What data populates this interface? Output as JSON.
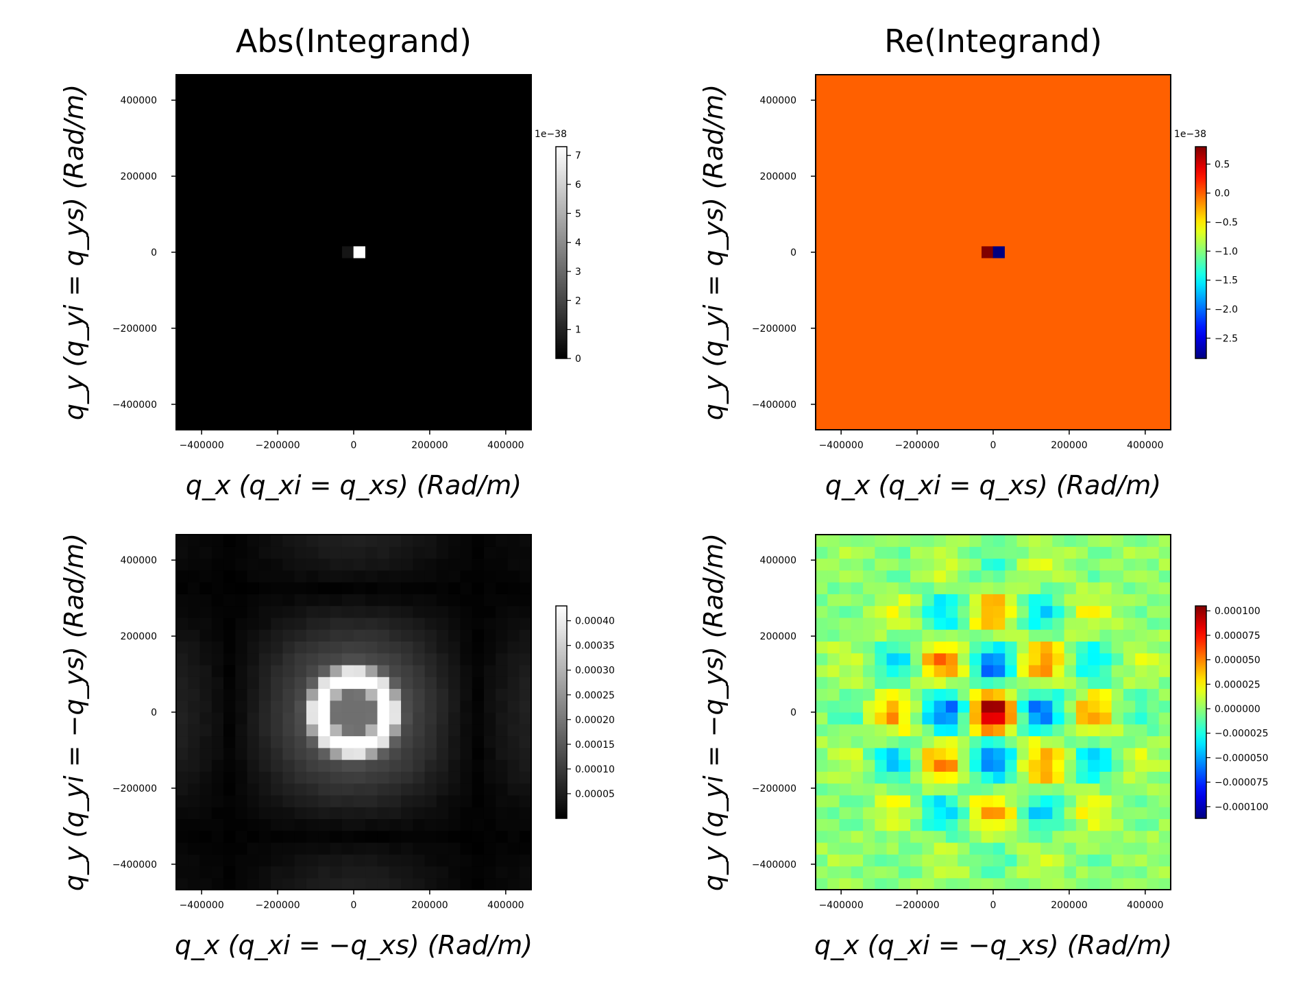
{
  "chart_data": [
    {
      "type": "heatmap",
      "colormap": "gray",
      "title": "Abs(Integrand)",
      "xlabel": "q_x (q_xi = q_xs) (Rad/m)",
      "ylabel": "q_y (q_yi = q_ys) (Rad/m)",
      "xlim": [
        -467000,
        467000
      ],
      "ylim": [
        -467000,
        467000
      ],
      "xticks": [
        -400000,
        -200000,
        0,
        200000,
        400000
      ],
      "xtick_labels": [
        "−400000",
        "−200000",
        "0",
        "200000",
        "400000"
      ],
      "yticks": [
        -400000,
        -200000,
        0,
        200000,
        400000
      ],
      "ytick_labels": [
        "−400000",
        "−200000",
        "0",
        "200000",
        "400000"
      ],
      "grid_size": 30,
      "background_value": 0,
      "cells": [
        {
          "x": -15000,
          "y": 0,
          "v": 0.6
        },
        {
          "x": 15000,
          "y": 0,
          "v": 7.3
        }
      ],
      "colorbar": {
        "min": 0,
        "max": 7.3,
        "ticks": [
          0,
          1,
          2,
          3,
          4,
          5,
          6,
          7
        ],
        "tick_labels": [
          "0",
          "1",
          "2",
          "3",
          "4",
          "5",
          "6",
          "7"
        ],
        "offset_label": "1e−38"
      },
      "grid": false
    },
    {
      "type": "heatmap",
      "colormap": "jet",
      "title": "Re(Integrand)",
      "xlabel": "q_x (q_xi = q_xs) (Rad/m)",
      "ylabel": "q_y (q_yi = q_ys) (Rad/m)",
      "xlim": [
        -467000,
        467000
      ],
      "ylim": [
        -467000,
        467000
      ],
      "xticks": [
        -400000,
        -200000,
        0,
        200000,
        400000
      ],
      "xtick_labels": [
        "−400000",
        "−200000",
        "0",
        "200000",
        "400000"
      ],
      "yticks": [
        -400000,
        -200000,
        0,
        200000,
        400000
      ],
      "ytick_labels": [
        "−400000",
        "−200000",
        "0",
        "200000",
        "400000"
      ],
      "grid_size": 30,
      "background_value": 0,
      "cells": [
        {
          "x": -15000,
          "y": 0,
          "v": 0.8
        },
        {
          "x": 15000,
          "y": 0,
          "v": -2.85
        }
      ],
      "colorbar": {
        "min": -2.85,
        "max": 0.8,
        "ticks": [
          0.5,
          0.0,
          -0.5,
          -1.0,
          -1.5,
          -2.0,
          -2.5
        ],
        "tick_labels": [
          "0.5",
          "0.0",
          "−0.5",
          "−1.0",
          "−1.5",
          "−2.0",
          "−2.5"
        ],
        "offset_label": "1e−38"
      },
      "grid": false
    },
    {
      "type": "heatmap",
      "colormap": "gray",
      "title": "",
      "xlabel": "q_x (q_xi = −q_xs) (Rad/m)",
      "ylabel": "q_y (q_yi = −q_ys) (Rad/m)",
      "xlim": [
        -467000,
        467000
      ],
      "ylim": [
        -467000,
        467000
      ],
      "xticks": [
        -400000,
        -200000,
        0,
        200000,
        400000
      ],
      "xtick_labels": [
        "−400000",
        "−200000",
        "0",
        "200000",
        "400000"
      ],
      "yticks": [
        -400000,
        -200000,
        0,
        200000,
        400000
      ],
      "ytick_labels": [
        "−400000",
        "−200000",
        "0",
        "200000",
        "400000"
      ],
      "grid_size": 30,
      "pattern": "ring_abs",
      "colorbar": {
        "min": 0,
        "max": 0.00043,
        "ticks": [
          5e-05,
          0.0001,
          0.00015,
          0.0002,
          0.00025,
          0.0003,
          0.00035,
          0.0004
        ],
        "tick_labels": [
          "0.00005",
          "0.00010",
          "0.00015",
          "0.00020",
          "0.00025",
          "0.00030",
          "0.00035",
          "0.00040"
        ],
        "offset_label": ""
      },
      "grid": false
    },
    {
      "type": "heatmap",
      "colormap": "jet",
      "title": "",
      "xlabel": "q_x (q_xi = −q_xs) (Rad/m)",
      "ylabel": "q_y (q_yi = −q_ys) (Rad/m)",
      "xlim": [
        -467000,
        467000
      ],
      "ylim": [
        -467000,
        467000
      ],
      "xticks": [
        -400000,
        -200000,
        0,
        200000,
        400000
      ],
      "xtick_labels": [
        "−400000",
        "−200000",
        "0",
        "200000",
        "400000"
      ],
      "yticks": [
        -400000,
        -200000,
        0,
        200000,
        400000
      ],
      "ytick_labels": [
        "−400000",
        "−200000",
        "0",
        "200000",
        "400000"
      ],
      "grid_size": 30,
      "pattern": "ring_re",
      "colorbar": {
        "min": -0.000112,
        "max": 0.000105,
        "ticks": [
          0.0001,
          7.5e-05,
          5e-05,
          2.5e-05,
          0.0,
          -2.5e-05,
          -5e-05,
          -7.5e-05,
          -0.0001
        ],
        "tick_labels": [
          "0.000100",
          "0.000075",
          "0.000050",
          "0.000025",
          "0.000000",
          "−0.000025",
          "−0.000050",
          "−0.000075",
          "−0.000100"
        ],
        "offset_label": ""
      },
      "grid": false
    }
  ]
}
